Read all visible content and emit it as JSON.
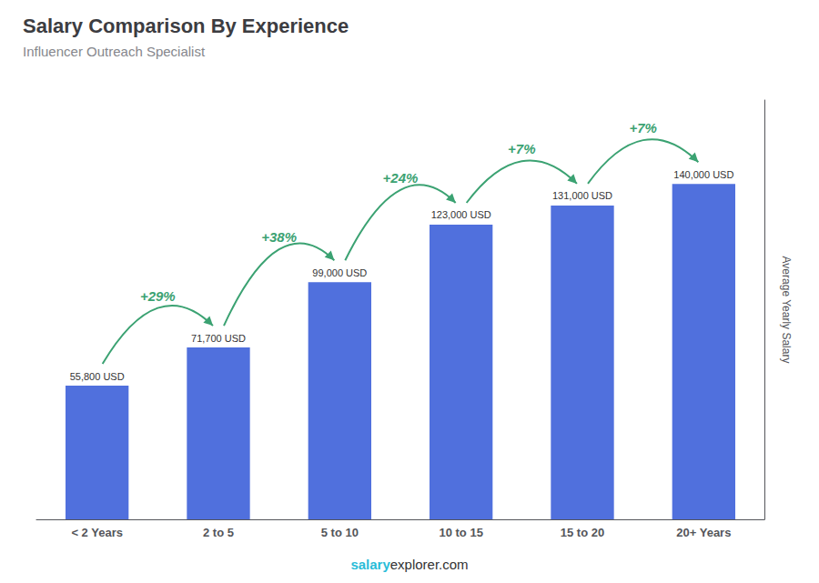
{
  "chart_data": {
    "type": "bar",
    "title": "Salary Comparison By Experience",
    "subtitle": "Influencer Outreach Specialist",
    "categories": [
      "< 2 Years",
      "2 to 5",
      "5 to 10",
      "10 to 15",
      "15 to 20",
      "20+ Years"
    ],
    "values": [
      55800,
      71700,
      99000,
      123000,
      131000,
      140000
    ],
    "value_labels": [
      "55,800 USD",
      "71,700 USD",
      "99,000 USD",
      "123,000 USD",
      "131,000 USD",
      "140,000 USD"
    ],
    "data_labels": true,
    "ylabel": "Average Yearly Salary",
    "ylim": [
      0,
      175000
    ],
    "tick_labels": "x",
    "grid": false,
    "annotations": [
      {
        "text": "+29%",
        "color": "#3ba272"
      },
      {
        "text": "+38%",
        "color": "#3ba272"
      },
      {
        "text": "+24%",
        "color": "#3ba272"
      },
      {
        "text": "+7%",
        "color": "#3ba272"
      },
      {
        "text": "+7%",
        "color": "#3ba272"
      }
    ],
    "footer": [
      {
        "text": "salary",
        "color": "#29bcd8"
      },
      {
        "text": "explorer.com",
        "color": "#333333"
      }
    ]
  }
}
